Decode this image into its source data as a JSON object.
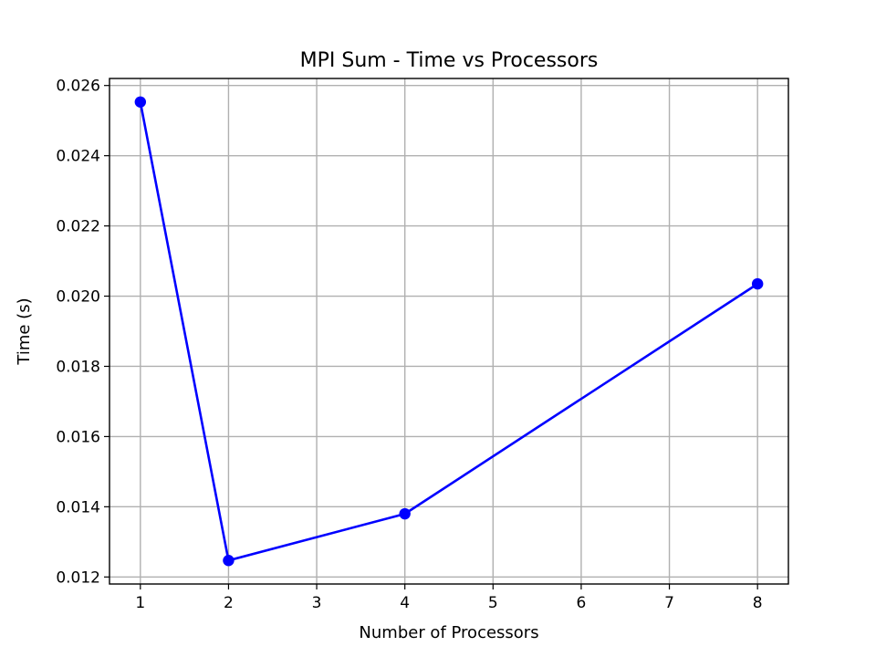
{
  "chart_data": {
    "type": "line",
    "title": "MPI Sum - Time vs Processors",
    "xlabel": "Number of Processors",
    "ylabel": "Time (s)",
    "x_ticks": [
      "1",
      "2",
      "3",
      "4",
      "5",
      "6",
      "7",
      "8"
    ],
    "y_ticks": [
      "0.012",
      "0.014",
      "0.016",
      "0.018",
      "0.020",
      "0.022",
      "0.024",
      "0.026"
    ],
    "xlim": [
      0.65,
      8.35
    ],
    "ylim": [
      0.0118,
      0.0262
    ],
    "grid": true,
    "series": [
      {
        "color": "#0000ff",
        "marker": "circle",
        "x": [
          1,
          2,
          4,
          8
        ],
        "y": [
          0.02553,
          0.01247,
          0.0138,
          0.02035
        ]
      }
    ]
  }
}
